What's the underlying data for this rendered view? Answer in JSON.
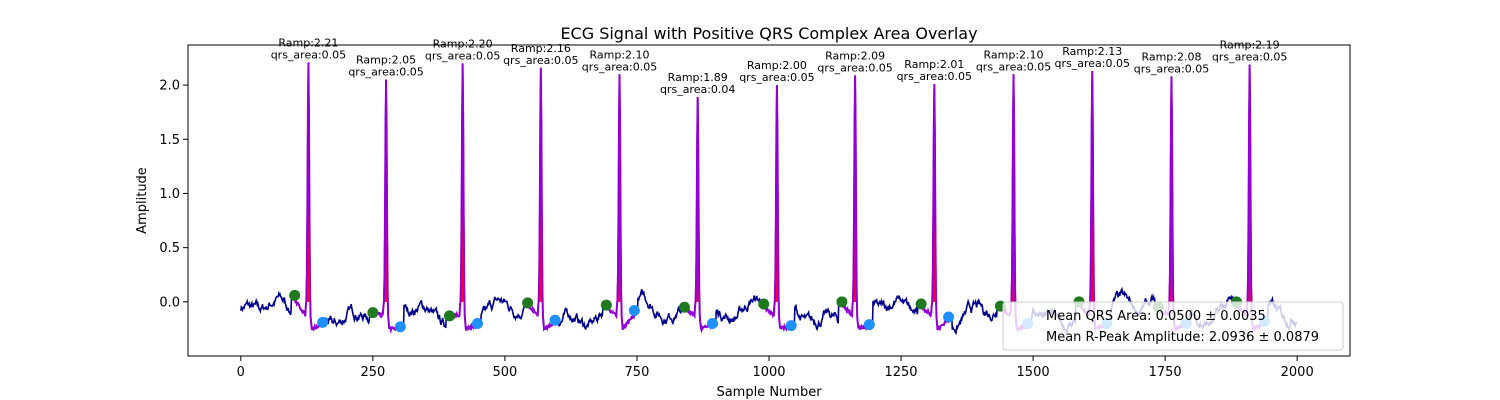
{
  "chart_data": {
    "type": "line",
    "title": "ECG Signal with Positive QRS Complex Area Overlay",
    "xlabel": "Sample Number",
    "ylabel": "Amplitude",
    "xlim": [
      -100,
      2100
    ],
    "ylim": [
      -0.5,
      2.37
    ],
    "xticks": [
      0,
      250,
      500,
      750,
      1000,
      1250,
      1500,
      1750,
      2000
    ],
    "yticks": [
      0.0,
      0.5,
      1.0,
      1.5,
      2.0
    ],
    "grid": false,
    "colors": {
      "signal": "#00008b",
      "qrs_segment": "#9400d3",
      "area_fill": "#ff0033",
      "q_onset_marker": "#1f7a1f",
      "s_offset_marker": "#1e90ff"
    },
    "beats": [
      {
        "r_index": 128,
        "ramp": 2.21,
        "qrs_area": 0.05,
        "ramp_label": "Ramp:2.21",
        "area_label": "qrs_area:0.05",
        "onset_x": 102,
        "onset_y": 0.06,
        "offset_x": 155,
        "offset_y": -0.19
      },
      {
        "r_index": 275,
        "ramp": 2.05,
        "qrs_area": 0.05,
        "ramp_label": "Ramp:2.05",
        "area_label": "qrs_area:0.05",
        "onset_x": 250,
        "onset_y": -0.1,
        "offset_x": 302,
        "offset_y": -0.23
      },
      {
        "r_index": 420,
        "ramp": 2.2,
        "qrs_area": 0.05,
        "ramp_label": "Ramp:2.20",
        "area_label": "qrs_area:0.05",
        "onset_x": 395,
        "onset_y": -0.13,
        "offset_x": 448,
        "offset_y": -0.2
      },
      {
        "r_index": 568,
        "ramp": 2.16,
        "qrs_area": 0.05,
        "ramp_label": "Ramp:2.16",
        "area_label": "qrs_area:0.05",
        "onset_x": 543,
        "onset_y": -0.01,
        "offset_x": 595,
        "offset_y": -0.17
      },
      {
        "r_index": 717,
        "ramp": 2.1,
        "qrs_area": 0.05,
        "ramp_label": "Ramp:2.10",
        "area_label": "qrs_area:0.05",
        "onset_x": 692,
        "onset_y": -0.03,
        "offset_x": 745,
        "offset_y": -0.08
      },
      {
        "r_index": 865,
        "ramp": 1.89,
        "qrs_area": 0.04,
        "ramp_label": "Ramp:1.89",
        "area_label": "qrs_area:0.04",
        "onset_x": 840,
        "onset_y": -0.05,
        "offset_x": 893,
        "offset_y": -0.2
      },
      {
        "r_index": 1015,
        "ramp": 2.0,
        "qrs_area": 0.05,
        "ramp_label": "Ramp:2.00",
        "area_label": "qrs_area:0.05",
        "onset_x": 990,
        "onset_y": -0.02,
        "offset_x": 1042,
        "offset_y": -0.22
      },
      {
        "r_index": 1163,
        "ramp": 2.09,
        "qrs_area": 0.05,
        "ramp_label": "Ramp:2.09",
        "area_label": "qrs_area:0.05",
        "onset_x": 1138,
        "onset_y": 0.0,
        "offset_x": 1190,
        "offset_y": -0.21
      },
      {
        "r_index": 1313,
        "ramp": 2.01,
        "qrs_area": 0.05,
        "ramp_label": "Ramp:2.01",
        "area_label": "qrs_area:0.05",
        "onset_x": 1288,
        "onset_y": -0.02,
        "offset_x": 1340,
        "offset_y": -0.14
      },
      {
        "r_index": 1463,
        "ramp": 2.1,
        "qrs_area": 0.05,
        "ramp_label": "Ramp:2.10",
        "area_label": "qrs_area:0.05",
        "onset_x": 1438,
        "onset_y": -0.04,
        "offset_x": 1490,
        "offset_y": -0.2
      },
      {
        "r_index": 1612,
        "ramp": 2.13,
        "qrs_area": 0.05,
        "ramp_label": "Ramp:2.13",
        "area_label": "qrs_area:0.05",
        "onset_x": 1587,
        "onset_y": 0.0,
        "offset_x": 1640,
        "offset_y": -0.2
      },
      {
        "r_index": 1762,
        "ramp": 2.08,
        "qrs_area": 0.05,
        "ramp_label": "Ramp:2.08",
        "area_label": "qrs_area:0.05",
        "onset_x": 1737,
        "onset_y": -0.05,
        "offset_x": 1790,
        "offset_y": -0.2
      },
      {
        "r_index": 1910,
        "ramp": 2.19,
        "qrs_area": 0.05,
        "ramp_label": "Ramp:2.19",
        "area_label": "qrs_area:0.05",
        "onset_x": 1885,
        "onset_y": 0.0,
        "offset_x": 1938,
        "offset_y": -0.18
      }
    ],
    "legend": {
      "placement": "lower-right",
      "entries": [
        "Mean QRS Area: 0.0500 ± 0.0035",
        "Mean R-Peak Amplitude: 2.0936 ± 0.0879"
      ]
    }
  }
}
